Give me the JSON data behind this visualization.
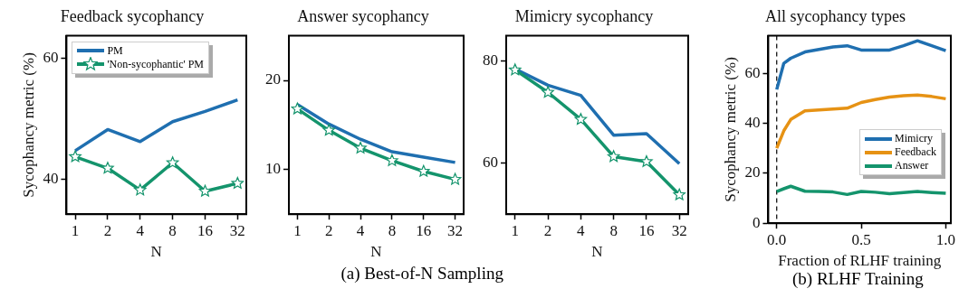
{
  "chart_data": [
    {
      "type": "line",
      "title": "Feedback sycophancy",
      "xlabel": "N",
      "ylabel": "Sycophancy metric (%)",
      "categories": [
        "1",
        "2",
        "4",
        "8",
        "16",
        "32"
      ],
      "ylim": [
        34.2,
        63.7
      ],
      "yticks": [
        40,
        60
      ],
      "grid": false,
      "legend": "top left",
      "series": [
        {
          "name": "PM",
          "color": "#1f6fb0",
          "values": [
            44.7,
            48.2,
            46.2,
            49.5,
            51.2,
            53.1
          ]
        },
        {
          "name": "'Non-sycophantic' PM",
          "color": "#14946c",
          "marker": "star",
          "values": [
            43.7,
            41.8,
            38.2,
            42.7,
            38.0,
            39.3
          ]
        }
      ]
    },
    {
      "type": "line",
      "title": "Answer sycophancy",
      "xlabel": "N",
      "categories": [
        "1",
        "2",
        "4",
        "8",
        "16",
        "32"
      ],
      "ylim": [
        5,
        25
      ],
      "yticks": [
        10,
        20
      ],
      "grid": false,
      "annotations": [
        "(a) Best-of-N Sampling"
      ],
      "series": [
        {
          "color": "#1f6fb0",
          "values": [
            17.3,
            15.1,
            13.4,
            12.0,
            11.4,
            10.8
          ]
        },
        {
          "color": "#14946c",
          "marker": "star",
          "values": [
            16.8,
            14.4,
            12.4,
            11.0,
            9.8,
            8.9
          ]
        }
      ]
    },
    {
      "type": "line",
      "title": "Mimicry sycophancy",
      "xlabel": "N",
      "categories": [
        "1",
        "2",
        "4",
        "8",
        "16",
        "32"
      ],
      "ylim": [
        50,
        85
      ],
      "yticks": [
        60,
        80
      ],
      "grid": false,
      "series": [
        {
          "color": "#1f6fb0",
          "values": [
            78.5,
            75.3,
            73.3,
            65.5,
            65.8,
            59.9
          ]
        },
        {
          "color": "#14946c",
          "marker": "star",
          "values": [
            78.3,
            73.9,
            68.6,
            61.3,
            60.3,
            53.8
          ]
        }
      ]
    },
    {
      "type": "line",
      "title": "All sycophancy types",
      "xlabel": "Fraction of RLHF training",
      "ylabel": "Sycophancy metric (%)",
      "x": [
        0,
        0.042,
        0.083,
        0.167,
        0.25,
        0.333,
        0.417,
        0.5,
        0.583,
        0.667,
        0.75,
        0.833,
        0.917,
        1.0
      ],
      "xlim": [
        -0.05,
        1.03
      ],
      "xticks": [
        {
          "value": 0,
          "label": "0.0"
        },
        {
          "value": 0.5,
          "label": "0.5"
        },
        {
          "value": 1,
          "label": "1.0"
        }
      ],
      "ylim": [
        0,
        75
      ],
      "yticks": [
        0,
        20,
        40,
        60
      ],
      "grid": false,
      "legend": "right",
      "annotations": [
        "(b) RLHF Training"
      ],
      "ref_lines": [
        {
          "axis": "x",
          "value": 0,
          "color": "#000000",
          "line_style": "dashed"
        }
      ],
      "series": [
        {
          "name": "Mimicry",
          "color": "#1f6fb0",
          "values": [
            53.5,
            64,
            66,
            68.5,
            69.5,
            70.5,
            71,
            69.3,
            69.3,
            69.3,
            71,
            73,
            71,
            69
          ]
        },
        {
          "name": "Feedback",
          "color": "#e69214",
          "values": [
            30,
            37,
            41.5,
            45,
            45.3,
            45.7,
            46,
            48.3,
            49.5,
            50.5,
            51,
            51.3,
            50.7,
            49.8
          ]
        },
        {
          "name": "Answer",
          "color": "#14946c",
          "values": [
            12.7,
            13.8,
            14.8,
            12.8,
            12.7,
            12.5,
            11.5,
            12.7,
            12.4,
            11.8,
            12.3,
            12.7,
            12.3,
            12
          ]
        }
      ]
    }
  ]
}
